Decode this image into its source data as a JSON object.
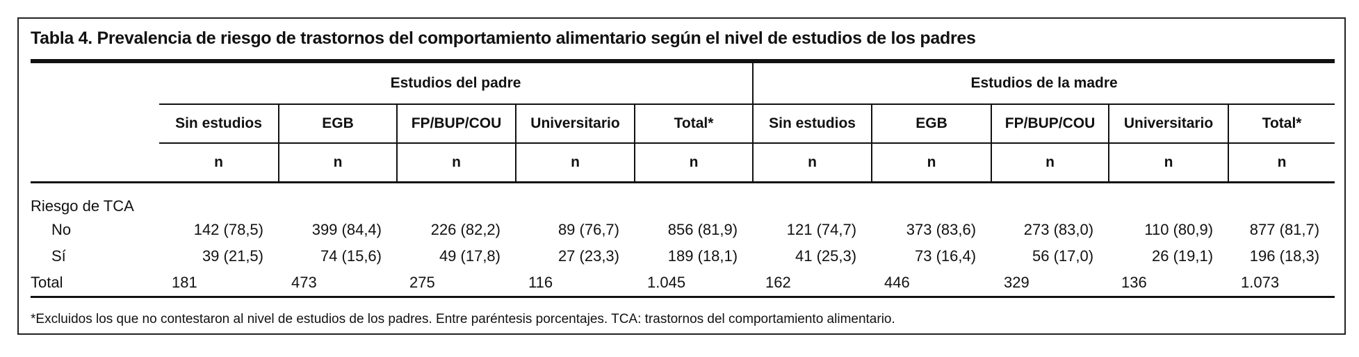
{
  "title": "Tabla 4. Prevalencia de riesgo de trastornos del comportamiento alimentario según el nivel de estudios de los padres",
  "table": {
    "groups": [
      "Estudios del padre",
      "Estudios de la madre"
    ],
    "columns": [
      "Sin estudios",
      "EGB",
      "FP/BUP/COU",
      "Universitario",
      "Total*",
      "Sin estudios",
      "EGB",
      "FP/BUP/COU",
      "Universitario",
      "Total*"
    ],
    "units": [
      "n",
      "n",
      "n",
      "n",
      "n",
      "n",
      "n",
      "n",
      "n",
      "n"
    ],
    "section": "Riesgo de TCA",
    "rows": [
      {
        "label": "No",
        "cells": [
          "142 (78,5)",
          "399 (84,4)",
          "226 (82,2)",
          "89 (76,7)",
          "856 (81,9)",
          "121 (74,7)",
          "373 (83,6)",
          "273 (83,0)",
          "110 (80,9)",
          "877 (81,7)"
        ]
      },
      {
        "label": "Sí",
        "cells": [
          "39 (21,5)",
          "74 (15,6)",
          "49 (17,8)",
          "27 (23,3)",
          "189 (18,1)",
          "41 (25,3)",
          "73 (16,4)",
          "56 (17,0)",
          "26 (19,1)",
          "196 (18,3)"
        ]
      }
    ],
    "total": {
      "label": "Total",
      "cells": [
        "181",
        "473",
        "275",
        "116",
        "1.045",
        "162",
        "446",
        "329",
        "136",
        "1.073"
      ]
    }
  },
  "footnote": "*Excluidos los que no contestaron al nivel de estudios de los padres. Entre paréntesis porcentajes. TCA: trastornos del comportamiento alimentario."
}
